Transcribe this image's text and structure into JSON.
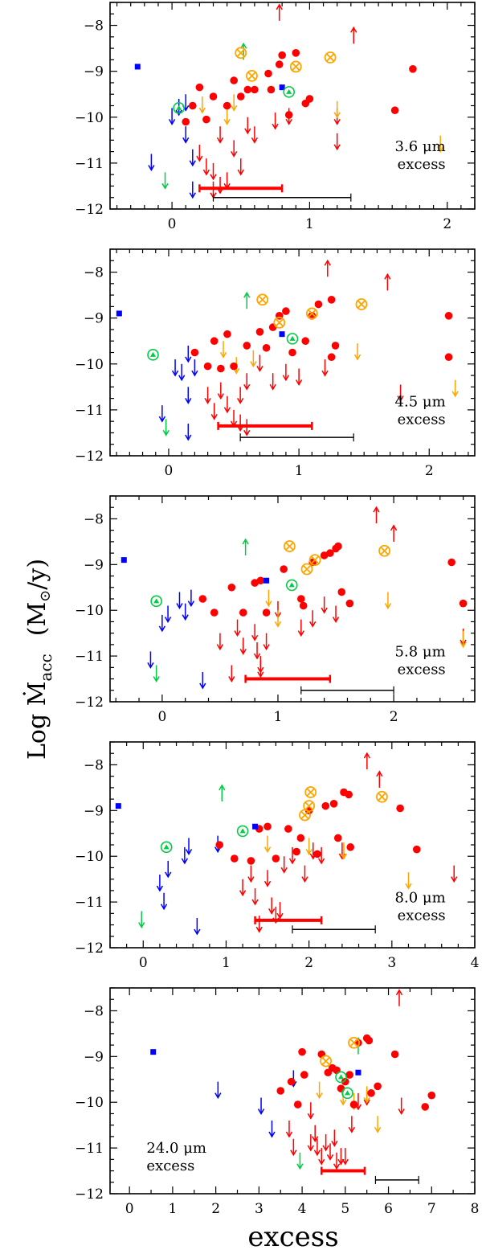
{
  "y_axis_label": "Log  Ṁ",
  "y_axis_label_sub": "acc",
  "y_axis_label_units": "(M",
  "y_axis_label_units_sun": "⊙",
  "y_axis_label_units_tail": "/y)",
  "x_axis_label": "excess",
  "colors": {
    "red": "#ff0000",
    "blue": "#0000ff",
    "green": "#00cc44",
    "orange": "#ffa500",
    "black": "#000000"
  },
  "chart_data": [
    {
      "type": "scatter",
      "annotation": [
        "3.6 μm",
        "excess"
      ],
      "xlim": [
        -0.45,
        2.2
      ],
      "ylim": [
        -12,
        -7.5
      ],
      "xticks": [
        0,
        1,
        2
      ],
      "yticks": [
        -8,
        -9,
        -10,
        -11,
        -12
      ],
      "red_points": [
        [
          0.1,
          -10.1
        ],
        [
          0.15,
          -9.75
        ],
        [
          0.2,
          -9.35
        ],
        [
          0.25,
          -10.05
        ],
        [
          0.3,
          -9.55
        ],
        [
          0.4,
          -9.75
        ],
        [
          0.45,
          -9.2
        ],
        [
          0.5,
          -9.55
        ],
        [
          0.55,
          -9.4
        ],
        [
          0.6,
          -9.4
        ],
        [
          0.7,
          -9.05
        ],
        [
          0.72,
          -9.4
        ],
        [
          0.78,
          -8.85
        ],
        [
          0.8,
          -8.65
        ],
        [
          0.85,
          -9.95
        ],
        [
          0.9,
          -8.6
        ],
        [
          0.97,
          -9.7
        ],
        [
          1.0,
          -9.6
        ],
        [
          1.62,
          -9.85
        ],
        [
          1.75,
          -8.95
        ]
      ],
      "red_up": [
        [
          0.78,
          -7.9
        ],
        [
          1.32,
          -8.4
        ]
      ],
      "red_down": [
        [
          0.2,
          -10.6
        ],
        [
          0.25,
          -10.9
        ],
        [
          0.3,
          -11.0
        ],
        [
          0.35,
          -10.2
        ],
        [
          0.4,
          -11.2
        ],
        [
          0.45,
          -10.5
        ],
        [
          0.5,
          -10.9
        ],
        [
          0.55,
          -10.0
        ],
        [
          0.6,
          -10.2
        ],
        [
          0.75,
          -9.9
        ],
        [
          0.85,
          -9.8
        ],
        [
          1.2,
          -9.8
        ],
        [
          1.2,
          -10.35
        ],
        [
          0.3,
          -11.4
        ],
        [
          0.35,
          -11.3
        ]
      ],
      "blue_points": [
        [
          -0.25,
          -8.9
        ],
        [
          0.8,
          -9.35
        ]
      ],
      "blue_down": [
        [
          -0.15,
          -10.8
        ],
        [
          0.0,
          -9.8
        ],
        [
          0.05,
          -9.6
        ],
        [
          0.1,
          -9.5
        ],
        [
          0.1,
          -10.2
        ],
        [
          0.15,
          -10.7
        ],
        [
          0.15,
          -11.4
        ]
      ],
      "green_circle_tri": [
        [
          0.05,
          -9.8
        ],
        [
          0.85,
          -9.45
        ]
      ],
      "green_up": [
        [
          0.52,
          -8.75
        ]
      ],
      "green_down": [
        [
          -0.05,
          -11.2
        ]
      ],
      "orange_cross": [
        [
          0.5,
          -8.6
        ],
        [
          0.58,
          -9.1
        ],
        [
          0.9,
          -8.9
        ],
        [
          1.15,
          -8.7
        ]
      ],
      "orange_down": [
        [
          0.22,
          -9.55
        ],
        [
          0.45,
          -9.5
        ],
        [
          1.2,
          -9.65
        ],
        [
          1.95,
          -10.4
        ],
        [
          0.4,
          -9.8
        ]
      ],
      "red_bar": [
        0.2,
        0.8,
        -11.55
      ],
      "black_bar": [
        0.3,
        1.3,
        -11.75
      ]
    },
    {
      "type": "scatter",
      "annotation": [
        "4.5 μm",
        "excess"
      ],
      "xlim": [
        -0.45,
        2.35
      ],
      "ylim": [
        -12,
        -7.5
      ],
      "xticks": [
        0,
        1,
        2
      ],
      "yticks": [
        -8,
        -9,
        -10,
        -11,
        -12
      ],
      "red_points": [
        [
          0.2,
          -9.75
        ],
        [
          0.3,
          -10.05
        ],
        [
          0.35,
          -9.5
        ],
        [
          0.4,
          -10.1
        ],
        [
          0.45,
          -9.35
        ],
        [
          0.5,
          -10.05
        ],
        [
          0.6,
          -9.6
        ],
        [
          0.7,
          -9.3
        ],
        [
          0.75,
          -9.65
        ],
        [
          0.8,
          -9.2
        ],
        [
          0.85,
          -8.95
        ],
        [
          0.9,
          -8.85
        ],
        [
          0.95,
          -9.75
        ],
        [
          1.05,
          -9.5
        ],
        [
          1.1,
          -8.95
        ],
        [
          1.15,
          -8.7
        ],
        [
          1.25,
          -8.6
        ],
        [
          1.25,
          -9.85
        ],
        [
          1.28,
          -9.6
        ],
        [
          2.15,
          -8.95
        ],
        [
          2.15,
          -9.85
        ]
      ],
      "red_up": [
        [
          1.22,
          -8.1
        ],
        [
          1.68,
          -8.4
        ]
      ],
      "red_down": [
        [
          0.3,
          -10.5
        ],
        [
          0.35,
          -10.85
        ],
        [
          0.4,
          -10.4
        ],
        [
          0.45,
          -10.7
        ],
        [
          0.5,
          -11.0
        ],
        [
          0.55,
          -10.5
        ],
        [
          0.6,
          -10.2
        ],
        [
          0.7,
          -9.8
        ],
        [
          0.8,
          -10.2
        ],
        [
          0.9,
          -10.0
        ],
        [
          1.0,
          -10.1
        ],
        [
          1.2,
          -9.9
        ],
        [
          1.78,
          -10.45
        ],
        [
          0.55,
          -11.1
        ],
        [
          0.6,
          -11.2
        ]
      ],
      "blue_points": [
        [
          -0.38,
          -8.9
        ],
        [
          0.87,
          -9.35
        ]
      ],
      "blue_down": [
        [
          -0.05,
          -10.9
        ],
        [
          0.05,
          -9.9
        ],
        [
          0.1,
          -10.0
        ],
        [
          0.15,
          -9.6
        ],
        [
          0.15,
          -10.5
        ],
        [
          0.2,
          -9.9
        ],
        [
          0.15,
          -11.3
        ]
      ],
      "green_circle_tri": [
        [
          -0.12,
          -9.8
        ],
        [
          0.95,
          -9.45
        ]
      ],
      "green_up": [
        [
          0.6,
          -8.8
        ]
      ],
      "green_down": [
        [
          -0.02,
          -11.2
        ]
      ],
      "orange_cross": [
        [
          0.72,
          -8.6
        ],
        [
          0.85,
          -9.1
        ],
        [
          1.1,
          -8.9
        ],
        [
          1.48,
          -8.7
        ]
      ],
      "orange_down": [
        [
          0.42,
          -9.5
        ],
        [
          0.52,
          -9.85
        ],
        [
          1.45,
          -9.55
        ],
        [
          2.2,
          -10.35
        ],
        [
          0.65,
          -9.7
        ]
      ],
      "red_bar": [
        0.38,
        1.1,
        -11.35
      ],
      "black_bar": [
        0.55,
        1.42,
        -11.6
      ]
    },
    {
      "type": "scatter",
      "annotation": [
        "5.8 μm",
        "excess"
      ],
      "xlim": [
        -0.45,
        2.7
      ],
      "ylim": [
        -12,
        -7.5
      ],
      "xticks": [
        0,
        1,
        2
      ],
      "yticks": [
        -8,
        -9,
        -10,
        -11,
        -12
      ],
      "red_points": [
        [
          0.35,
          -9.75
        ],
        [
          0.45,
          -10.05
        ],
        [
          0.6,
          -9.5
        ],
        [
          0.7,
          -10.05
        ],
        [
          0.8,
          -9.4
        ],
        [
          0.85,
          -9.35
        ],
        [
          0.9,
          -10.05
        ],
        [
          1.05,
          -9.1
        ],
        [
          1.2,
          -9.75
        ],
        [
          1.22,
          -9.9
        ],
        [
          1.3,
          -8.95
        ],
        [
          1.4,
          -8.8
        ],
        [
          1.45,
          -8.75
        ],
        [
          1.5,
          -8.65
        ],
        [
          1.52,
          -8.6
        ],
        [
          1.55,
          -9.6
        ],
        [
          1.62,
          -9.85
        ],
        [
          2.5,
          -8.95
        ],
        [
          2.6,
          -9.85
        ]
      ],
      "red_up": [
        [
          1.85,
          -8.1
        ],
        [
          2.0,
          -8.5
        ]
      ],
      "red_down": [
        [
          0.5,
          -10.5
        ],
        [
          0.6,
          -11.2
        ],
        [
          0.65,
          -10.2
        ],
        [
          0.7,
          -10.6
        ],
        [
          0.8,
          -10.3
        ],
        [
          0.82,
          -10.7
        ],
        [
          0.85,
          -11.0
        ],
        [
          0.9,
          -10.5
        ],
        [
          1.0,
          -9.8
        ],
        [
          1.2,
          -10.2
        ],
        [
          1.3,
          -10.0
        ],
        [
          1.4,
          -9.7
        ],
        [
          1.5,
          -9.9
        ],
        [
          2.6,
          -10.4
        ],
        [
          0.85,
          -11.1
        ]
      ],
      "blue_points": [
        [
          -0.33,
          -8.9
        ],
        [
          0.9,
          -9.35
        ]
      ],
      "blue_down": [
        [
          -0.1,
          -10.9
        ],
        [
          0.0,
          -10.1
        ],
        [
          0.05,
          -9.9
        ],
        [
          0.15,
          -9.6
        ],
        [
          0.2,
          -9.85
        ],
        [
          0.25,
          -9.55
        ],
        [
          0.35,
          -11.35
        ]
      ],
      "green_circle_tri": [
        [
          -0.05,
          -9.8
        ],
        [
          1.12,
          -9.45
        ]
      ],
      "green_up": [
        [
          0.72,
          -8.8
        ]
      ],
      "green_down": [
        [
          -0.05,
          -11.2
        ]
      ],
      "orange_cross": [
        [
          1.1,
          -8.6
        ],
        [
          1.25,
          -9.1
        ],
        [
          1.32,
          -8.9
        ],
        [
          1.92,
          -8.7
        ]
      ],
      "orange_down": [
        [
          0.92,
          -9.55
        ],
        [
          1.95,
          -9.6
        ],
        [
          2.6,
          -10.45
        ],
        [
          1.0,
          -10.0
        ]
      ],
      "red_bar": [
        0.72,
        1.45,
        -11.5
      ],
      "black_bar": [
        1.2,
        2.0,
        -11.75
      ]
    },
    {
      "type": "scatter",
      "annotation": [
        "8.0 μm",
        "excess"
      ],
      "xlim": [
        -0.4,
        4.0
      ],
      "ylim": [
        -12,
        -7.5
      ],
      "xticks": [
        0,
        1,
        2,
        3,
        4
      ],
      "yticks": [
        -8,
        -9,
        -10,
        -11,
        -12
      ],
      "red_points": [
        [
          0.92,
          -9.75
        ],
        [
          1.1,
          -10.05
        ],
        [
          1.3,
          -10.1
        ],
        [
          1.4,
          -9.4
        ],
        [
          1.5,
          -9.35
        ],
        [
          1.6,
          -10.05
        ],
        [
          1.75,
          -9.4
        ],
        [
          1.85,
          -9.9
        ],
        [
          1.9,
          -9.6
        ],
        [
          2.0,
          -9.0
        ],
        [
          2.1,
          -9.95
        ],
        [
          2.2,
          -8.9
        ],
        [
          2.3,
          -8.85
        ],
        [
          2.35,
          -9.6
        ],
        [
          2.42,
          -8.6
        ],
        [
          2.48,
          -8.65
        ],
        [
          2.5,
          -9.8
        ],
        [
          3.1,
          -8.95
        ],
        [
          3.3,
          -9.85
        ]
      ],
      "red_up": [
        [
          2.7,
          -8.1
        ],
        [
          2.85,
          -8.5
        ]
      ],
      "red_down": [
        [
          1.2,
          -10.5
        ],
        [
          1.3,
          -10.2
        ],
        [
          1.35,
          -10.7
        ],
        [
          1.4,
          -11.3
        ],
        [
          1.5,
          -10.3
        ],
        [
          1.55,
          -10.9
        ],
        [
          1.65,
          -11.0
        ],
        [
          1.7,
          -10.0
        ],
        [
          1.8,
          -9.8
        ],
        [
          1.95,
          -10.2
        ],
        [
          2.05,
          -9.7
        ],
        [
          2.15,
          -9.8
        ],
        [
          2.4,
          -9.7
        ],
        [
          3.75,
          -10.2
        ],
        [
          1.6,
          -11.1
        ]
      ],
      "blue_points": [
        [
          -0.3,
          -8.9
        ],
        [
          1.35,
          -9.35
        ]
      ],
      "blue_down": [
        [
          0.2,
          -10.4
        ],
        [
          0.25,
          -10.8
        ],
        [
          0.3,
          -10.1
        ],
        [
          0.5,
          -9.8
        ],
        [
          0.55,
          -9.6
        ],
        [
          0.65,
          -11.35
        ],
        [
          0.9,
          -9.55
        ]
      ],
      "green_circle_tri": [
        [
          0.28,
          -9.8
        ],
        [
          1.2,
          -9.45
        ]
      ],
      "green_up": [
        [
          0.95,
          -8.8
        ]
      ],
      "green_down": [
        [
          -0.02,
          -11.2
        ]
      ],
      "orange_cross": [
        [
          1.95,
          -9.1
        ],
        [
          2.0,
          -8.9
        ],
        [
          2.02,
          -8.6
        ],
        [
          2.88,
          -8.7
        ]
      ],
      "orange_down": [
        [
          2.0,
          -9.6
        ],
        [
          2.42,
          -9.7
        ],
        [
          3.2,
          -10.35
        ],
        [
          1.5,
          -9.55
        ]
      ],
      "red_bar": [
        1.35,
        2.15,
        -11.4
      ],
      "black_bar": [
        1.8,
        2.8,
        -11.6
      ]
    },
    {
      "type": "scatter",
      "annotation": [
        "24.0 μm",
        "excess"
      ],
      "xlim": [
        -0.45,
        8.0
      ],
      "ylim": [
        -12,
        -7.5
      ],
      "xticks": [
        0,
        1,
        2,
        3,
        4,
        5,
        6,
        7,
        8
      ],
      "yticks": [
        -8,
        -9,
        -10,
        -11,
        -12
      ],
      "red_points": [
        [
          3.5,
          -9.75
        ],
        [
          3.75,
          -9.55
        ],
        [
          3.9,
          -10.05
        ],
        [
          4.0,
          -8.9
        ],
        [
          4.05,
          -9.4
        ],
        [
          4.45,
          -8.95
        ],
        [
          4.6,
          -9.35
        ],
        [
          4.7,
          -9.25
        ],
        [
          4.8,
          -9.3
        ],
        [
          4.9,
          -9.7
        ],
        [
          5.0,
          -9.55
        ],
        [
          5.1,
          -9.4
        ],
        [
          5.2,
          -10.05
        ],
        [
          5.3,
          -8.7
        ],
        [
          5.5,
          -8.6
        ],
        [
          5.55,
          -8.65
        ],
        [
          5.6,
          -9.8
        ],
        [
          5.75,
          -9.65
        ],
        [
          6.15,
          -8.95
        ],
        [
          6.85,
          -10.1
        ],
        [
          7.0,
          -9.85
        ]
      ],
      "red_up": [
        [
          6.25,
          -7.9
        ]
      ],
      "red_down": [
        [
          3.7,
          -10.4
        ],
        [
          3.8,
          -10.8
        ],
        [
          4.2,
          -10.0
        ],
        [
          4.3,
          -10.5
        ],
        [
          4.35,
          -10.8
        ],
        [
          4.45,
          -11.0
        ],
        [
          4.55,
          -10.7
        ],
        [
          4.65,
          -10.9
        ],
        [
          4.75,
          -10.6
        ],
        [
          4.8,
          -11.1
        ],
        [
          4.9,
          -11.0
        ],
        [
          5.0,
          -11.0
        ],
        [
          5.15,
          -10.3
        ],
        [
          5.3,
          -9.8
        ],
        [
          5.5,
          -9.7
        ],
        [
          6.3,
          -9.9
        ],
        [
          4.2,
          -10.7
        ]
      ],
      "blue_points": [
        [
          0.55,
          -8.9
        ],
        [
          5.3,
          -9.35
        ]
      ],
      "blue_down": [
        [
          2.05,
          -9.55
        ],
        [
          3.05,
          -9.9
        ],
        [
          3.3,
          -10.4
        ],
        [
          3.8,
          -9.3
        ]
      ],
      "green_circle_tri": [
        [
          4.9,
          -9.45
        ],
        [
          5.05,
          -9.8
        ]
      ],
      "green_up": [
        [
          5.3,
          -8.95
        ]
      ],
      "green_down": [
        [
          3.95,
          -11.1
        ]
      ],
      "orange_cross": [
        [
          4.55,
          -9.1
        ],
        [
          5.2,
          -8.7
        ]
      ],
      "orange_down": [
        [
          4.4,
          -9.55
        ],
        [
          4.95,
          -9.7
        ],
        [
          5.5,
          -9.65
        ],
        [
          5.75,
          -10.3
        ],
        [
          5.2,
          -9.8
        ]
      ],
      "red_bar": [
        4.45,
        5.45,
        -11.5
      ],
      "black_bar": [
        5.7,
        6.7,
        -11.7
      ]
    }
  ]
}
